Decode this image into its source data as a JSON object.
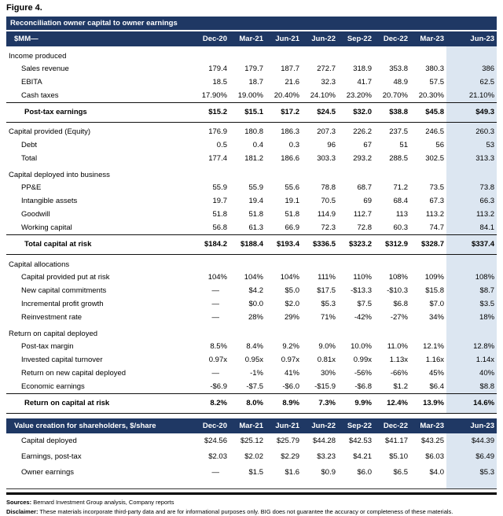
{
  "figure_label": "Figure 4.",
  "colors": {
    "navy": "#1F3864",
    "highlight": "#DCE6F1"
  },
  "columns": [
    "Dec-20",
    "Mar-21",
    "Jun-21",
    "Jun-22",
    "Sep-22",
    "Dec-22",
    "Mar-23",
    "Jun-23"
  ],
  "table1": {
    "title": "Reconciliation owner capital to owner earnings",
    "unit_label": "$MM—",
    "rows": [
      {
        "type": "section",
        "label": "Income produced",
        "values": []
      },
      {
        "type": "data",
        "label": "Sales revenue",
        "values": [
          "179.4",
          "179.7",
          "187.7",
          "272.7",
          "318.9",
          "353.8",
          "380.3",
          "386"
        ]
      },
      {
        "type": "data",
        "label": "EBITA",
        "values": [
          "18.5",
          "18.7",
          "21.6",
          "32.3",
          "41.7",
          "48.9",
          "57.5",
          "62.5"
        ]
      },
      {
        "type": "data",
        "label": "Cash taxes",
        "values": [
          "17.90%",
          "19.00%",
          "20.40%",
          "24.10%",
          "23.20%",
          "20.70%",
          "20.30%",
          "21.10%"
        ]
      },
      {
        "type": "total",
        "label": "Post-tax earnings",
        "values": [
          "$15.2",
          "$15.1",
          "$17.2",
          "$24.5",
          "$32.0",
          "$38.8",
          "$45.8",
          "$49.3"
        ]
      },
      {
        "type": "lead",
        "label": "Capital provided (Equity)",
        "values": [
          "176.9",
          "180.8",
          "186.3",
          "207.3",
          "226.2",
          "237.5",
          "246.5",
          "260.3"
        ]
      },
      {
        "type": "data",
        "label": "Debt",
        "values": [
          "0.5",
          "0.4",
          "0.3",
          "96",
          "67",
          "51",
          "56",
          "53"
        ]
      },
      {
        "type": "data",
        "label": "Total",
        "values": [
          "177.4",
          "181.2",
          "186.6",
          "303.3",
          "293.2",
          "288.5",
          "302.5",
          "313.3"
        ]
      },
      {
        "type": "section",
        "label": "Capital deployed into business",
        "values": []
      },
      {
        "type": "data",
        "label": "PP&E",
        "values": [
          "55.9",
          "55.9",
          "55.6",
          "78.8",
          "68.7",
          "71.2",
          "73.5",
          "73.8"
        ]
      },
      {
        "type": "data",
        "label": "Intangible assets",
        "values": [
          "19.7",
          "19.4",
          "19.1",
          "70.5",
          "69",
          "68.4",
          "67.3",
          "66.3"
        ]
      },
      {
        "type": "data",
        "label": "Goodwill",
        "values": [
          "51.8",
          "51.8",
          "51.8",
          "114.9",
          "112.7",
          "113",
          "113.2",
          "113.2"
        ]
      },
      {
        "type": "data",
        "label": "Working capital",
        "values": [
          "56.8",
          "61.3",
          "66.9",
          "72.3",
          "72.8",
          "60.3",
          "74.7",
          "84.1"
        ]
      },
      {
        "type": "total",
        "label": "Total capital at risk",
        "values": [
          "$184.2",
          "$188.4",
          "$193.4",
          "$336.5",
          "$323.2",
          "$312.9",
          "$328.7",
          "$337.4"
        ]
      },
      {
        "type": "section",
        "label": "Capital allocations",
        "values": []
      },
      {
        "type": "data",
        "label": "Capital provided put at risk",
        "values": [
          "104%",
          "104%",
          "104%",
          "111%",
          "110%",
          "108%",
          "109%",
          "108%"
        ]
      },
      {
        "type": "data",
        "label": "New capital commitments",
        "values": [
          "—",
          "$4.2",
          "$5.0",
          "$17.5",
          "-$13.3",
          "-$10.3",
          "$15.8",
          "$8.7"
        ]
      },
      {
        "type": "data",
        "label": "Incremental profit growth",
        "values": [
          "—",
          "$0.0",
          "$2.0",
          "$5.3",
          "$7.5",
          "$6.8",
          "$7.0",
          "$3.5"
        ]
      },
      {
        "type": "data",
        "label": "Reinvestment rate",
        "values": [
          "—",
          "28%",
          "29%",
          "71%",
          "-42%",
          "-27%",
          "34%",
          "18%"
        ]
      },
      {
        "type": "section",
        "label": "Return on capital deployed",
        "values": []
      },
      {
        "type": "data",
        "label": "Post-tax margin",
        "values": [
          "8.5%",
          "8.4%",
          "9.2%",
          "9.0%",
          "10.0%",
          "11.0%",
          "12.1%",
          "12.8%"
        ]
      },
      {
        "type": "data",
        "label": "Invested capital turnover",
        "values": [
          "0.97x",
          "0.95x",
          "0.97x",
          "0.81x",
          "0.99x",
          "1.13x",
          "1.16x",
          "1.14x"
        ]
      },
      {
        "type": "data",
        "label": "Return on new capital deployed",
        "values": [
          "—",
          "-1%",
          "41%",
          "30%",
          "-56%",
          "-66%",
          "45%",
          "40%"
        ]
      },
      {
        "type": "data",
        "label": "Economic earnings",
        "values": [
          "-$6.9",
          "-$7.5",
          "-$6.0",
          "-$15.9",
          "-$6.8",
          "$1.2",
          "$6.4",
          "$8.8"
        ]
      },
      {
        "type": "total",
        "label": "Return on capital at risk",
        "values": [
          "8.2%",
          "8.0%",
          "8.9%",
          "7.3%",
          "9.9%",
          "12.4%",
          "13.9%",
          "14.6%"
        ]
      }
    ]
  },
  "table2": {
    "title": "Value creation for shareholders, $/share",
    "rows": [
      {
        "type": "data",
        "label": "Capital deployed",
        "values": [
          "$24.56",
          "$25.12",
          "$25.79",
          "$44.28",
          "$42.53",
          "$41.17",
          "$43.25",
          "$44.39"
        ]
      },
      {
        "type": "data",
        "label": "Earnings, post-tax",
        "values": [
          "$2.03",
          "$2.02",
          "$2.29",
          "$3.23",
          "$4.21",
          "$5.10",
          "$6.03",
          "$6.49"
        ]
      },
      {
        "type": "data",
        "label": "Owner earnings",
        "values": [
          "—",
          "$1.5",
          "$1.6",
          "$0.9",
          "$6.0",
          "$6.5",
          "$4.0",
          "$5.3"
        ]
      },
      {
        "type": "spacer",
        "label": "",
        "values": []
      }
    ]
  },
  "footer": {
    "sources_label": "Sources:",
    "sources_text": "Bernard Investment Group analysis, Company reports",
    "disclaimer_label": "Disclaimer:",
    "disclaimer_text": "These materials incorporate third-party data and are for informational purposes only. BIG does not guarantee the accuracy or completeness of these materials."
  }
}
